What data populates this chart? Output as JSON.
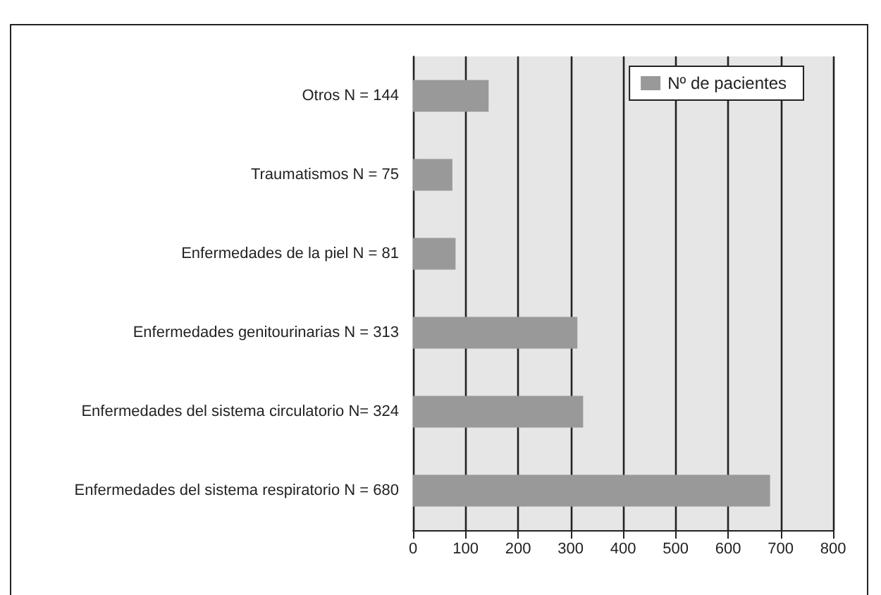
{
  "chart_data": {
    "type": "bar",
    "orientation": "horizontal",
    "categories": [
      "Otros N = 144",
      "Traumatismos N = 75",
      "Enfermedades de la piel N = 81",
      "Enfermedades genitourinarias N = 313",
      "Enfermedades del sistema circulatorio N= 324",
      "Enfermedades del sistema respiratorio N = 680"
    ],
    "series": [
      {
        "name": "Nº de pacientes",
        "color": "#999999",
        "values": [
          144,
          75,
          81,
          313,
          324,
          680
        ]
      }
    ],
    "xlim": [
      0,
      800
    ],
    "xticks": [
      0,
      100,
      200,
      300,
      400,
      500,
      600,
      700,
      800
    ],
    "grid": "x",
    "legend": "top right"
  }
}
